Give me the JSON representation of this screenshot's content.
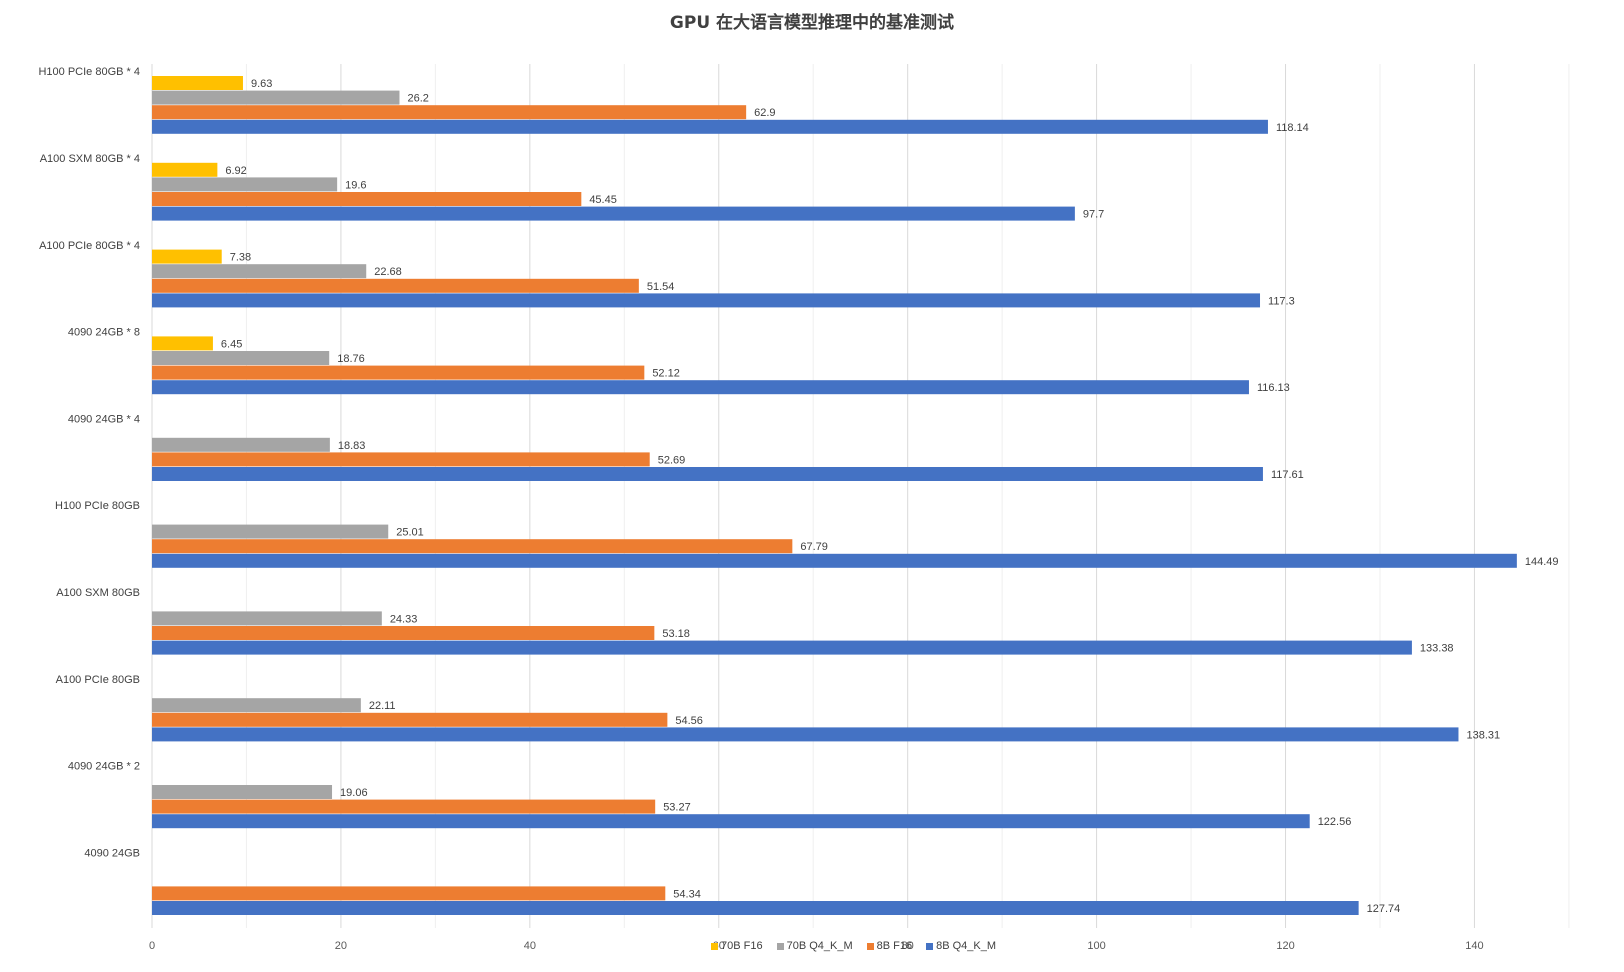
{
  "chart_data": {
    "type": "bar",
    "orientation": "horizontal",
    "title": "GPU 在大语言模型推理中的基准测试",
    "xlabel": "",
    "ylabel": "",
    "xlim": [
      0,
      150
    ],
    "xticks": [
      0,
      20,
      40,
      60,
      80,
      100,
      120,
      140
    ],
    "grid": true,
    "legend_position": "bottom",
    "categories": [
      "H100 PCIe 80GB * 4",
      "A100 SXM 80GB * 4",
      "A100 PCIe 80GB * 4",
      "4090 24GB * 8",
      "4090 24GB * 4",
      "H100 PCIe 80GB",
      "A100 SXM 80GB",
      "A100 PCIe 80GB",
      "4090 24GB * 2",
      "4090 24GB"
    ],
    "series": [
      {
        "name": "70B F16",
        "color": "#FFC000",
        "values": [
          9.63,
          6.92,
          7.38,
          6.45,
          null,
          null,
          null,
          null,
          null,
          null
        ]
      },
      {
        "name": "70B Q4_K_M",
        "color": "#A5A5A5",
        "values": [
          26.2,
          19.6,
          22.68,
          18.76,
          18.83,
          25.01,
          24.33,
          22.11,
          19.06,
          null
        ]
      },
      {
        "name": "8B F16",
        "color": "#ED7D31",
        "values": [
          62.9,
          45.45,
          51.54,
          52.12,
          52.69,
          67.79,
          53.18,
          54.56,
          53.27,
          54.34
        ]
      },
      {
        "name": "8B Q4_K_M",
        "color": "#4472C4",
        "values": [
          118.14,
          97.7,
          117.3,
          116.13,
          117.61,
          144.49,
          133.38,
          138.31,
          122.56,
          127.74
        ]
      }
    ]
  }
}
